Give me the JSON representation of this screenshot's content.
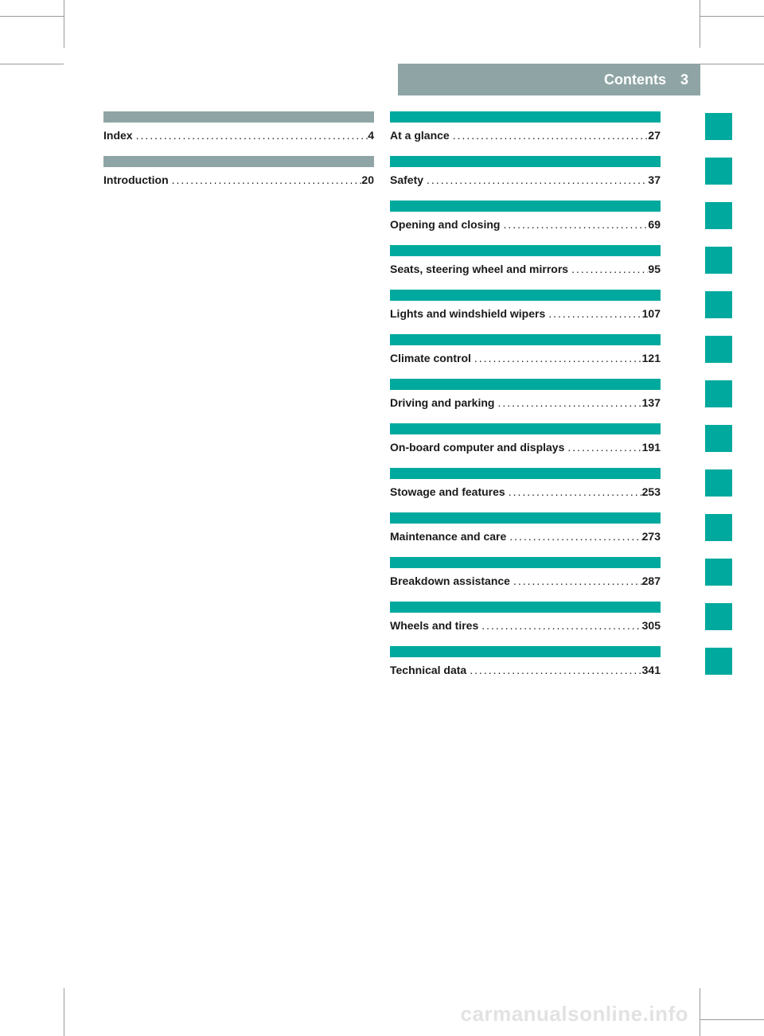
{
  "header": {
    "title": "Contents",
    "page_number": "3",
    "bg_color": "#8fa5a5",
    "text_color": "#ffffff"
  },
  "colors": {
    "gray_bar": "#8fa5a5",
    "teal_bar": "#00a99d",
    "text": "#1a1a1a",
    "frame_line": "#999999"
  },
  "toc_left": [
    {
      "title": "Index",
      "page": "4",
      "divider_color": "gray"
    },
    {
      "title": "Introduction",
      "page": "20",
      "divider_color": "gray"
    }
  ],
  "toc_right": [
    {
      "title": "At a glance",
      "page": "27",
      "divider_color": "teal"
    },
    {
      "title": "Safety",
      "page": "37",
      "divider_color": "teal"
    },
    {
      "title": "Opening and closing",
      "page": "69",
      "divider_color": "teal"
    },
    {
      "title": "Seats, steering wheel and mirrors",
      "page": "95",
      "divider_color": "teal"
    },
    {
      "title": "Lights and windshield wipers",
      "page": "107",
      "divider_color": "teal"
    },
    {
      "title": "Climate control",
      "page": "121",
      "divider_color": "teal"
    },
    {
      "title": "Driving and parking",
      "page": "137",
      "divider_color": "teal"
    },
    {
      "title": "On-board computer and displays",
      "page": "191",
      "divider_color": "teal"
    },
    {
      "title": "Stowage and features",
      "page": "253",
      "divider_color": "teal"
    },
    {
      "title": "Maintenance and care",
      "page": "273",
      "divider_color": "teal"
    },
    {
      "title": "Breakdown assistance",
      "page": "287",
      "divider_color": "teal"
    },
    {
      "title": "Wheels and tires",
      "page": "305",
      "divider_color": "teal"
    },
    {
      "title": "Technical data",
      "page": "341",
      "divider_color": "teal"
    }
  ],
  "side_tab_count": 13,
  "watermark": "carmanualsonline.info",
  "dots": ".................................................."
}
